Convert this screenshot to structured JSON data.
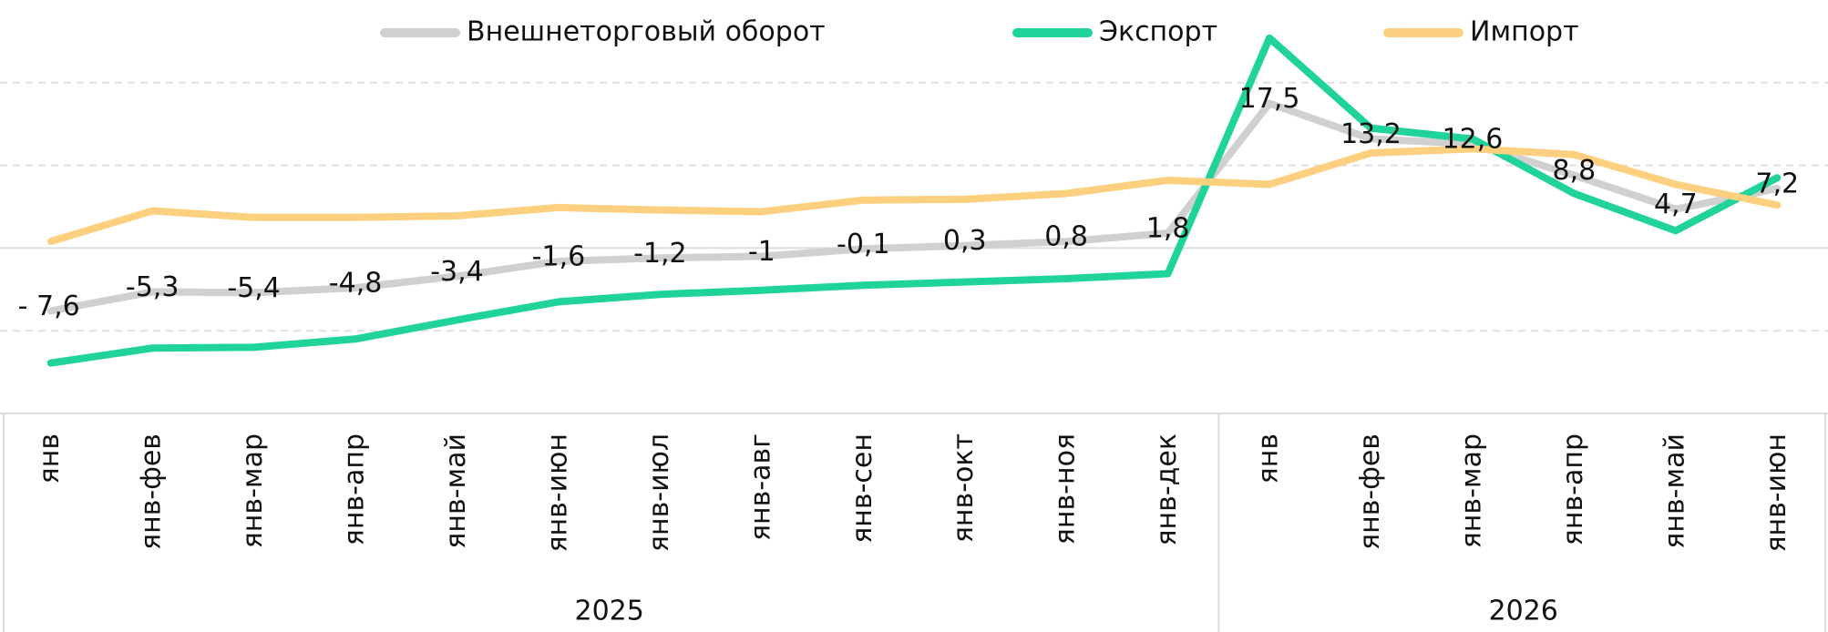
{
  "chart_data": {
    "type": "line",
    "groups": [
      {
        "label": "2025",
        "categories": [
          "янв",
          "янв-фев",
          "янв-мар",
          "янв-апр",
          "янв-май",
          "янв-июн",
          "янв-июл",
          "янв-авг",
          "янв-сен",
          "янв-окт",
          "янв-ноя",
          "янв-дек"
        ]
      },
      {
        "label": "2026",
        "categories": [
          "янв",
          "янв-фев",
          "янв-мар",
          "янв-апр",
          "янв-май",
          "янв-июн"
        ]
      }
    ],
    "series": [
      {
        "name": "Внешнеторговый оборот",
        "color": "#d0d0d0",
        "values": [
          -7.6,
          -5.3,
          -5.4,
          -4.8,
          -3.4,
          -1.6,
          -1.2,
          -1,
          -0.1,
          0.3,
          0.8,
          1.8,
          17.5,
          13.2,
          12.6,
          8.8,
          4.7,
          7.2
        ],
        "value_labels": [
          "- 7,6",
          "-5,3",
          "-5,4",
          "-4,8",
          "-3,4",
          "-1,6",
          "-1,2",
          "-1",
          "-0,1",
          "0,3",
          "0,8",
          "1,8",
          "17,5",
          "13,2",
          "12,6",
          "8,8",
          "4,7",
          "7,2"
        ]
      },
      {
        "name": "Экспорт",
        "color": "#1fd39a",
        "values": [
          -13.9,
          -12.1,
          -12.0,
          -11.0,
          -8.7,
          -6.5,
          -5.6,
          -5.1,
          -4.5,
          -4.1,
          -3.7,
          -3.1,
          25.4,
          14.5,
          13.2,
          6.6,
          2.1,
          8.5
        ]
      },
      {
        "name": "Импорт",
        "color": "#fdd07f",
        "values": [
          0.8,
          4.5,
          3.7,
          3.7,
          3.9,
          4.9,
          4.6,
          4.4,
          5.8,
          5.9,
          6.6,
          8.2,
          7.7,
          11.5,
          12.0,
          11.3,
          7.7,
          5.2
        ]
      }
    ],
    "ylim": [
      -20,
      30
    ],
    "yticks": [
      -10,
      0,
      10,
      20
    ],
    "grid": true
  }
}
